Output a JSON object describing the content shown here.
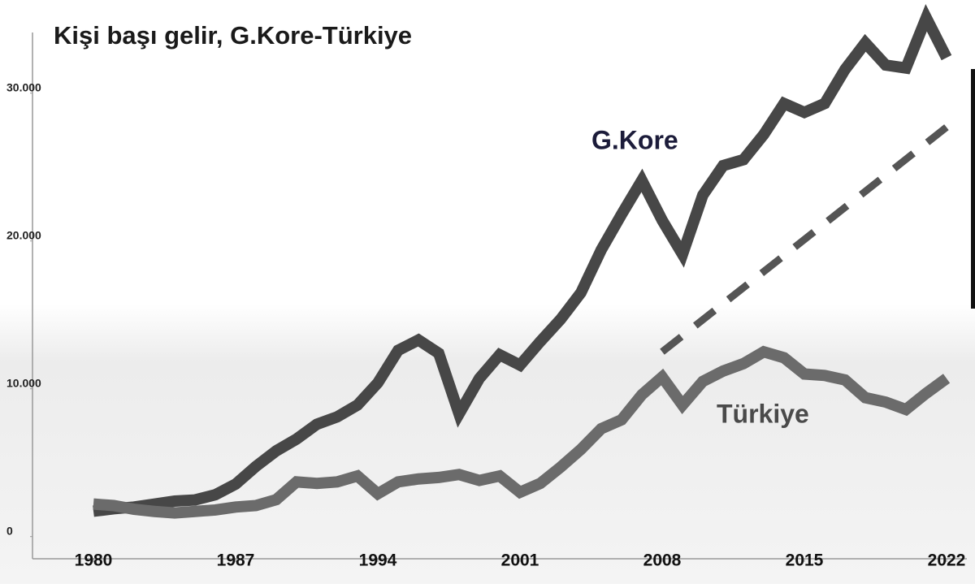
{
  "chart_data": {
    "type": "line",
    "title": "Kişi başı gelir, G.Kore-Türkiye",
    "x": [
      1980,
      1981,
      1982,
      1983,
      1984,
      1985,
      1986,
      1987,
      1988,
      1989,
      1990,
      1991,
      1992,
      1993,
      1994,
      1995,
      1996,
      1997,
      1998,
      1999,
      2000,
      2001,
      2002,
      2003,
      2004,
      2005,
      2006,
      2007,
      2008,
      2009,
      2010,
      2011,
      2012,
      2013,
      2014,
      2015,
      2016,
      2017,
      2018,
      2019,
      2020,
      2021,
      2022
    ],
    "series": [
      {
        "name": "G.Kore",
        "color": "#474747",
        "values": [
          1715,
          1883,
          2000,
          2200,
          2400,
          2480,
          2830,
          3550,
          4750,
          5800,
          6600,
          7600,
          8100,
          8900,
          10400,
          12600,
          13300,
          12400,
          8300,
          10700,
          12300,
          11600,
          13200,
          14700,
          16500,
          19400,
          21800,
          24100,
          21400,
          19100,
          23100,
          25100,
          25500,
          27200,
          29300,
          28700,
          29300,
          31600,
          33400,
          31900,
          31700,
          35100,
          32400
        ]
      },
      {
        "name": "Türkiye",
        "color": "#6b6b6b",
        "values": [
          2200,
          2100,
          1850,
          1700,
          1600,
          1700,
          1800,
          2000,
          2100,
          2500,
          3700,
          3600,
          3700,
          4100,
          2900,
          3700,
          3900,
          4000,
          4200,
          3800,
          4100,
          3000,
          3600,
          4700,
          5900,
          7300,
          7900,
          9600,
          10800,
          8900,
          10500,
          11200,
          11700,
          12500,
          12100,
          11000,
          10900,
          10600,
          9400,
          9100,
          8600,
          9700,
          10700
        ]
      }
    ],
    "trend": {
      "color": "#555555",
      "x": [
        2008,
        2022
      ],
      "values": [
        12500,
        27700
      ]
    },
    "xlim": [
      1977,
      2023
    ],
    "xticks": [
      1980,
      1987,
      1994,
      2001,
      2008,
      2015,
      2022
    ],
    "ylim": [
      -1500,
      36000
    ],
    "yticks": [
      0,
      {
        "value": 10000,
        "label": "10.000"
      },
      {
        "value": 20000,
        "label": "20.000"
      },
      {
        "value": 30000,
        "label": "30.000"
      }
    ]
  }
}
